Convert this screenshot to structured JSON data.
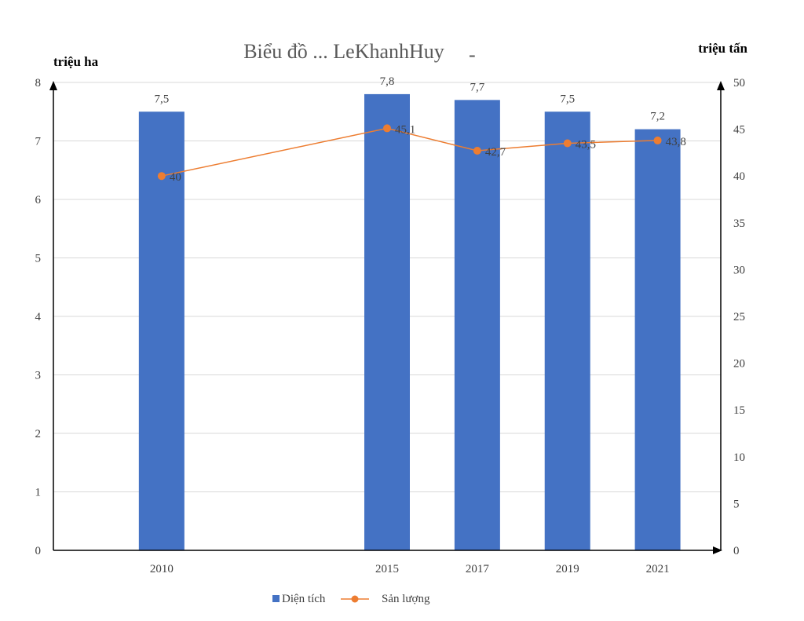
{
  "chart_data": {
    "type": "bar",
    "title": "Biểu đồ ... LeKhanhHuy",
    "title_suffix": "-",
    "categories": [
      "2010",
      "2015",
      "2017",
      "2019",
      "2021"
    ],
    "x": [
      2010,
      2015,
      2017,
      2019,
      2021
    ],
    "xlim": [
      2007.6,
      2022.4
    ],
    "series": [
      {
        "name": "Diện tích",
        "type": "bar",
        "axis": "left",
        "color": "#4472C4",
        "values": [
          7.5,
          7.8,
          7.7,
          7.5,
          7.2
        ],
        "labels": [
          "7,5",
          "7,8",
          "7,7",
          "7,5",
          "7,2"
        ]
      },
      {
        "name": "Sản lượng",
        "type": "line",
        "axis": "right",
        "color": "#ED7D31",
        "values": [
          40,
          45.1,
          42.7,
          43.5,
          43.8
        ],
        "labels": [
          "40",
          "45,1",
          "42,7",
          "43,5",
          "43,8"
        ]
      }
    ],
    "ylabel_left": "triệu ha",
    "ylabel_right": "triệu tấn",
    "ylim_left": [
      0,
      8
    ],
    "yticks_left": [
      "0",
      "1",
      "2",
      "3",
      "4",
      "5",
      "6",
      "7",
      "8"
    ],
    "ylim_right": [
      0,
      50
    ],
    "yticks_right": [
      "0",
      "5",
      "10",
      "15",
      "20",
      "25",
      "30",
      "35",
      "40",
      "45",
      "50"
    ],
    "grid": true,
    "legend_position": "bottom"
  }
}
